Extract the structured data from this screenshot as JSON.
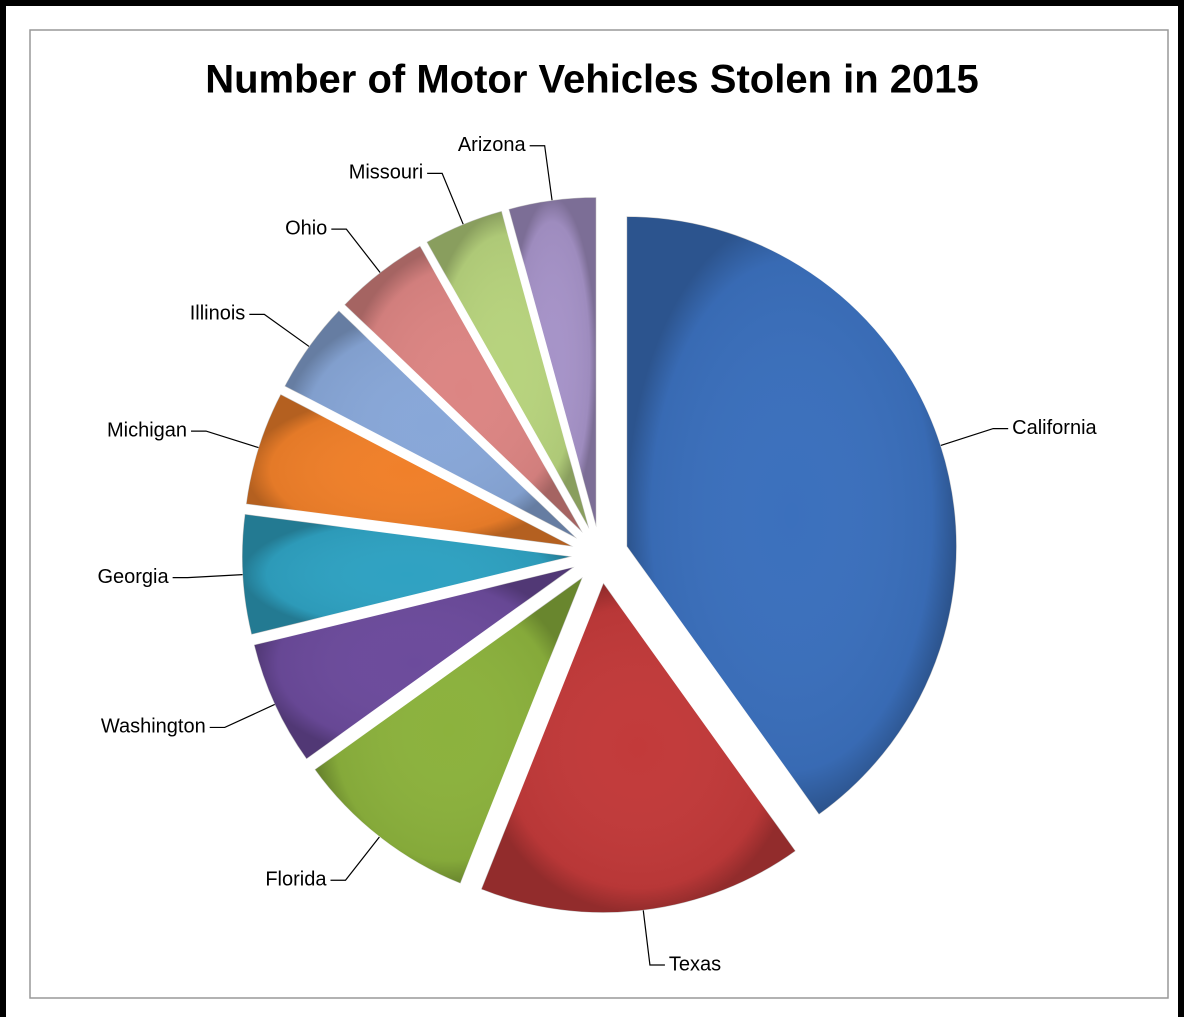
{
  "chart_data": {
    "type": "pie",
    "title": "Number of Motor Vehicles Stolen in 2015",
    "categories": [
      "California",
      "Texas",
      "Florida",
      "Washington",
      "Georgia",
      "Michigan",
      "Illinois",
      "Ohio",
      "Missouri",
      "Arizona"
    ],
    "values": [
      168159,
      66855,
      37945,
      25606,
      24567,
      23426,
      18911,
      19466,
      16474,
      17938
    ],
    "colors": [
      "#3b70bd",
      "#c23a3a",
      "#8cb23d",
      "#6c4b9c",
      "#2fa2c2",
      "#f0802a",
      "#88a7d8",
      "#dc8583",
      "#b7d37d",
      "#a693c8"
    ]
  }
}
